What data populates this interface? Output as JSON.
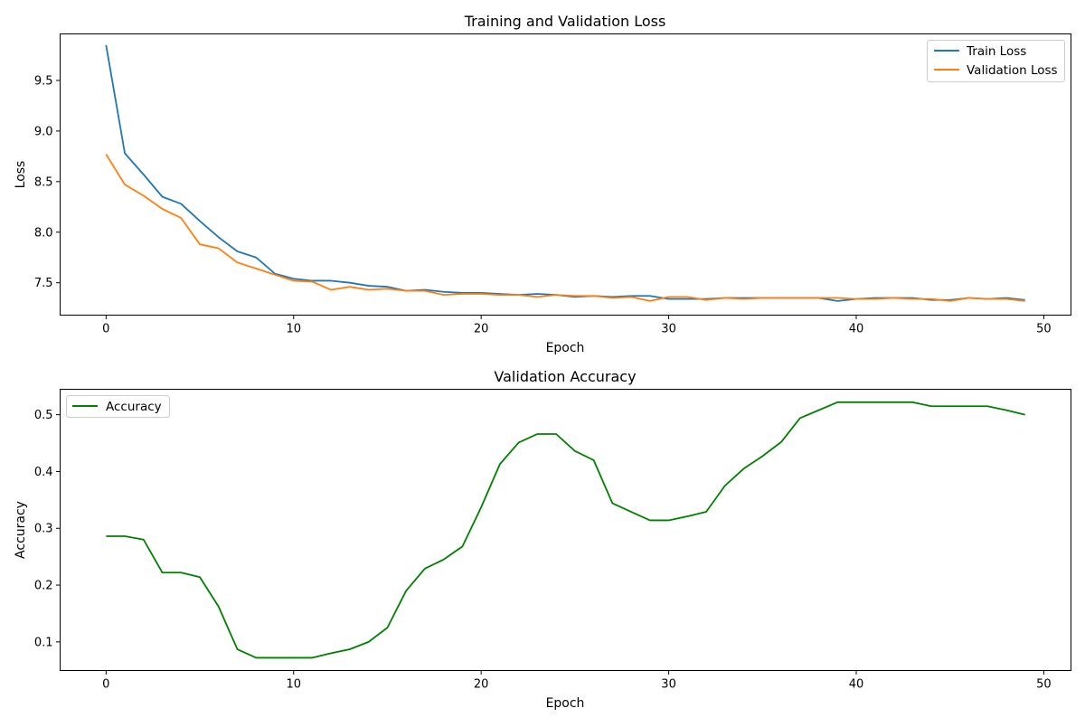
{
  "chart_data": [
    {
      "type": "line",
      "title": "Training and Validation Loss",
      "xlabel": "Epoch",
      "ylabel": "Loss",
      "xlim": [
        -2.45,
        51.45
      ],
      "ylim": [
        7.18,
        9.96
      ],
      "xticks": [
        0,
        10,
        20,
        30,
        40,
        50
      ],
      "yticks": [
        7.5,
        8.0,
        8.5,
        9.0,
        9.5
      ],
      "ytick_labels": [
        "7.5",
        "8.0",
        "8.5",
        "9.0",
        "9.5"
      ],
      "grid": false,
      "legend_position": "upper-right",
      "x": [
        0,
        1,
        2,
        3,
        4,
        5,
        6,
        7,
        8,
        9,
        10,
        11,
        12,
        13,
        14,
        15,
        16,
        17,
        18,
        19,
        20,
        21,
        22,
        23,
        24,
        25,
        26,
        27,
        28,
        29,
        30,
        31,
        32,
        33,
        34,
        35,
        36,
        37,
        38,
        39,
        40,
        41,
        42,
        43,
        44,
        45,
        46,
        47,
        48,
        49
      ],
      "series": [
        {
          "name": "Train Loss",
          "color": "#1f77b4",
          "values": [
            9.85,
            8.78,
            8.57,
            8.35,
            8.28,
            8.11,
            7.95,
            7.81,
            7.75,
            7.59,
            7.54,
            7.52,
            7.52,
            7.5,
            7.47,
            7.46,
            7.42,
            7.43,
            7.41,
            7.4,
            7.4,
            7.39,
            7.38,
            7.39,
            7.38,
            7.36,
            7.37,
            7.36,
            7.37,
            7.37,
            7.34,
            7.34,
            7.34,
            7.35,
            7.35,
            7.35,
            7.35,
            7.35,
            7.35,
            7.32,
            7.34,
            7.35,
            7.35,
            7.35,
            7.33,
            7.33,
            7.35,
            7.34,
            7.35,
            7.33
          ]
        },
        {
          "name": "Validation Loss",
          "color": "#ff7f0e",
          "values": [
            8.77,
            8.47,
            8.36,
            8.23,
            8.14,
            7.88,
            7.84,
            7.7,
            7.64,
            7.58,
            7.52,
            7.51,
            7.43,
            7.46,
            7.43,
            7.44,
            7.42,
            7.42,
            7.38,
            7.39,
            7.39,
            7.38,
            7.38,
            7.36,
            7.38,
            7.37,
            7.37,
            7.35,
            7.36,
            7.32,
            7.36,
            7.36,
            7.33,
            7.35,
            7.34,
            7.35,
            7.35,
            7.35,
            7.35,
            7.35,
            7.34,
            7.34,
            7.35,
            7.34,
            7.34,
            7.32,
            7.35,
            7.34,
            7.34,
            7.32
          ]
        }
      ]
    },
    {
      "type": "line",
      "title": "Validation Accuracy",
      "xlabel": "Epoch",
      "ylabel": "Accuracy",
      "xlim": [
        -2.45,
        51.45
      ],
      "ylim": [
        0.0496,
        0.5448
      ],
      "xticks": [
        0,
        10,
        20,
        30,
        40,
        50
      ],
      "yticks": [
        0.1,
        0.2,
        0.3,
        0.4,
        0.5
      ],
      "ytick_labels": [
        "0.1",
        "0.2",
        "0.3",
        "0.4",
        "0.5"
      ],
      "grid": false,
      "legend_position": "upper-left",
      "x": [
        0,
        1,
        2,
        3,
        4,
        5,
        6,
        7,
        8,
        9,
        10,
        11,
        12,
        13,
        14,
        15,
        16,
        17,
        18,
        19,
        20,
        21,
        22,
        23,
        24,
        25,
        26,
        27,
        28,
        29,
        30,
        31,
        32,
        33,
        34,
        35,
        36,
        37,
        38,
        39,
        40,
        41,
        42,
        43,
        44,
        45,
        46,
        47,
        48,
        49
      ],
      "series": [
        {
          "name": "Accuracy",
          "color": "#008000",
          "values": [
            0.286,
            0.286,
            0.28,
            0.222,
            0.222,
            0.214,
            0.162,
            0.087,
            0.072,
            0.072,
            0.072,
            0.072,
            0.08,
            0.087,
            0.1,
            0.125,
            0.19,
            0.229,
            0.245,
            0.268,
            0.337,
            0.413,
            0.451,
            0.466,
            0.466,
            0.436,
            0.42,
            0.344,
            0.329,
            0.314,
            0.314,
            0.321,
            0.329,
            0.375,
            0.405,
            0.427,
            0.452,
            0.494,
            0.508,
            0.522,
            0.522,
            0.522,
            0.522,
            0.522,
            0.515,
            0.515,
            0.515,
            0.515,
            0.508,
            0.5
          ]
        }
      ]
    }
  ]
}
